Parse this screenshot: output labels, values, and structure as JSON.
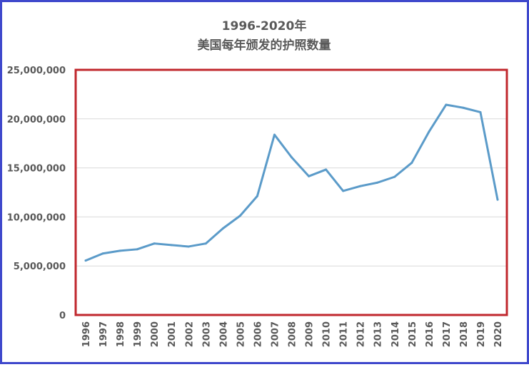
{
  "chart_data": {
    "type": "line",
    "title": "1996-2020年",
    "subtitle": "美国每年颁发的护照数量",
    "xlabel": "",
    "ylabel": "",
    "ylim": [
      0,
      25000000
    ],
    "yticks": [
      {
        "value": 0,
        "label": "0"
      },
      {
        "value": 5000000,
        "label": "5,000,000"
      },
      {
        "value": 10000000,
        "label": "10,000,000"
      },
      {
        "value": 15000000,
        "label": "15,000,000"
      },
      {
        "value": 20000000,
        "label": "20,000,000"
      },
      {
        "value": 25000000,
        "label": "25,000,000"
      }
    ],
    "grid": true,
    "legend": "none",
    "categories": [
      "1996",
      "1997",
      "1998",
      "1999",
      "2000",
      "2001",
      "2002",
      "2003",
      "2004",
      "2005",
      "2006",
      "2007",
      "2008",
      "2009",
      "2010",
      "2011",
      "2012",
      "2013",
      "2014",
      "2015",
      "2016",
      "2017",
      "2018",
      "2019",
      "2020"
    ],
    "series": [
      {
        "values": [
          5550000,
          6270000,
          6550000,
          6700000,
          7290000,
          7130000,
          6980000,
          7290000,
          8830000,
          10120000,
          12130000,
          18380000,
          16080000,
          14150000,
          14830000,
          12650000,
          13140000,
          13500000,
          14090000,
          15520000,
          18680000,
          21440000,
          21130000,
          20680000,
          11760000
        ]
      }
    ],
    "colors": {
      "line": "#5b9bc9",
      "plot_border": "#c0272d",
      "outer_border": "#3f48cc",
      "grid": "#d9d9d9",
      "text": "#595959"
    }
  }
}
